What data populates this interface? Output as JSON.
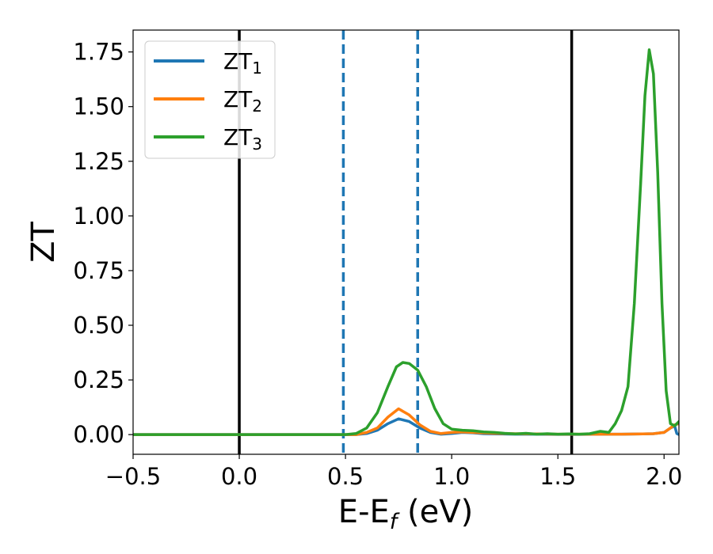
{
  "chart_data": {
    "type": "line",
    "xlabel_main": "E-E",
    "xlabel_sub": "f",
    "xlabel_unit": " (eV)",
    "ylabel": "ZT",
    "xlim": [
      -0.5,
      2.07
    ],
    "ylim": [
      -0.09,
      1.85
    ],
    "xticks": [
      -0.5,
      0.0,
      0.5,
      1.0,
      1.5,
      2.0
    ],
    "xtick_labels": [
      "−0.5",
      "0.0",
      "0.5",
      "1.0",
      "1.5",
      "2.0"
    ],
    "yticks": [
      0.0,
      0.25,
      0.5,
      0.75,
      1.0,
      1.25,
      1.5,
      1.75
    ],
    "ytick_labels": [
      "0.00",
      "0.25",
      "0.50",
      "0.75",
      "1.00",
      "1.25",
      "1.50",
      "1.75"
    ],
    "grid": false,
    "legend_position": "top-left",
    "vlines": [
      {
        "x": 0.0,
        "style": "solid",
        "color": "#000000"
      },
      {
        "x": 0.49,
        "style": "dashed",
        "color": "#1f77b4"
      },
      {
        "x": 0.84,
        "style": "dashed",
        "color": "#1f77b4"
      },
      {
        "x": 1.565,
        "style": "solid",
        "color": "#000000"
      }
    ],
    "series": [
      {
        "name": "ZT",
        "sub": "1",
        "color": "#1f77b4",
        "points": [
          [
            -0.5,
            0
          ],
          [
            0.4,
            0
          ],
          [
            0.55,
            0
          ],
          [
            0.6,
            0.005
          ],
          [
            0.65,
            0.02
          ],
          [
            0.7,
            0.05
          ],
          [
            0.75,
            0.072
          ],
          [
            0.8,
            0.06
          ],
          [
            0.85,
            0.03
          ],
          [
            0.9,
            0.01
          ],
          [
            0.95,
            0.002
          ],
          [
            1.0,
            0.005
          ],
          [
            1.05,
            0.01
          ],
          [
            1.1,
            0.008
          ],
          [
            1.15,
            0.004
          ],
          [
            1.2,
            0.003
          ],
          [
            1.3,
            0.002
          ],
          [
            1.4,
            0.002
          ],
          [
            1.5,
            0.001
          ],
          [
            1.6,
            0.001
          ],
          [
            1.7,
            0.002
          ],
          [
            1.8,
            0.002
          ],
          [
            1.9,
            0.003
          ],
          [
            1.95,
            0.004
          ],
          [
            2.0,
            0.01
          ],
          [
            2.03,
            0.03
          ],
          [
            2.05,
            0.04
          ],
          [
            2.06,
            0.005
          ],
          [
            2.07,
            0.0
          ]
        ]
      },
      {
        "name": "ZT",
        "sub": "2",
        "color": "#ff7f0e",
        "points": [
          [
            -0.5,
            0
          ],
          [
            0.4,
            0
          ],
          [
            0.55,
            0
          ],
          [
            0.6,
            0.01
          ],
          [
            0.65,
            0.03
          ],
          [
            0.7,
            0.08
          ],
          [
            0.75,
            0.118
          ],
          [
            0.8,
            0.09
          ],
          [
            0.85,
            0.045
          ],
          [
            0.9,
            0.015
          ],
          [
            0.95,
            0.005
          ],
          [
            1.0,
            0.01
          ],
          [
            1.05,
            0.012
          ],
          [
            1.1,
            0.01
          ],
          [
            1.2,
            0.006
          ],
          [
            1.3,
            0.004
          ],
          [
            1.4,
            0.003
          ],
          [
            1.5,
            0.002
          ],
          [
            1.6,
            0.002
          ],
          [
            1.7,
            0.002
          ],
          [
            1.8,
            0.002
          ],
          [
            1.9,
            0.003
          ],
          [
            1.95,
            0.004
          ],
          [
            2.0,
            0.01
          ],
          [
            2.03,
            0.03
          ],
          [
            2.05,
            0.045
          ],
          [
            2.07,
            0.05
          ]
        ]
      },
      {
        "name": "ZT",
        "sub": "3",
        "color": "#2ca02c",
        "points": [
          [
            -0.5,
            0
          ],
          [
            0.4,
            0
          ],
          [
            0.5,
            0
          ],
          [
            0.55,
            0.005
          ],
          [
            0.6,
            0.03
          ],
          [
            0.65,
            0.1
          ],
          [
            0.7,
            0.22
          ],
          [
            0.74,
            0.31
          ],
          [
            0.77,
            0.33
          ],
          [
            0.8,
            0.325
          ],
          [
            0.84,
            0.295
          ],
          [
            0.88,
            0.22
          ],
          [
            0.92,
            0.12
          ],
          [
            0.96,
            0.05
          ],
          [
            1.0,
            0.025
          ],
          [
            1.05,
            0.02
          ],
          [
            1.1,
            0.018
          ],
          [
            1.15,
            0.012
          ],
          [
            1.2,
            0.01
          ],
          [
            1.25,
            0.006
          ],
          [
            1.3,
            0.003
          ],
          [
            1.35,
            0.006
          ],
          [
            1.4,
            0.002
          ],
          [
            1.45,
            0.004
          ],
          [
            1.5,
            0.002
          ],
          [
            1.55,
            0.003
          ],
          [
            1.6,
            0.002
          ],
          [
            1.65,
            0.004
          ],
          [
            1.7,
            0.015
          ],
          [
            1.74,
            0.01
          ],
          [
            1.77,
            0.05
          ],
          [
            1.8,
            0.11
          ],
          [
            1.83,
            0.22
          ],
          [
            1.86,
            0.6
          ],
          [
            1.89,
            1.15
          ],
          [
            1.91,
            1.55
          ],
          [
            1.93,
            1.76
          ],
          [
            1.95,
            1.65
          ],
          [
            1.97,
            1.2
          ],
          [
            1.99,
            0.6
          ],
          [
            2.01,
            0.2
          ],
          [
            2.03,
            0.05
          ],
          [
            2.05,
            0.04
          ],
          [
            2.07,
            0.06
          ]
        ]
      }
    ]
  }
}
